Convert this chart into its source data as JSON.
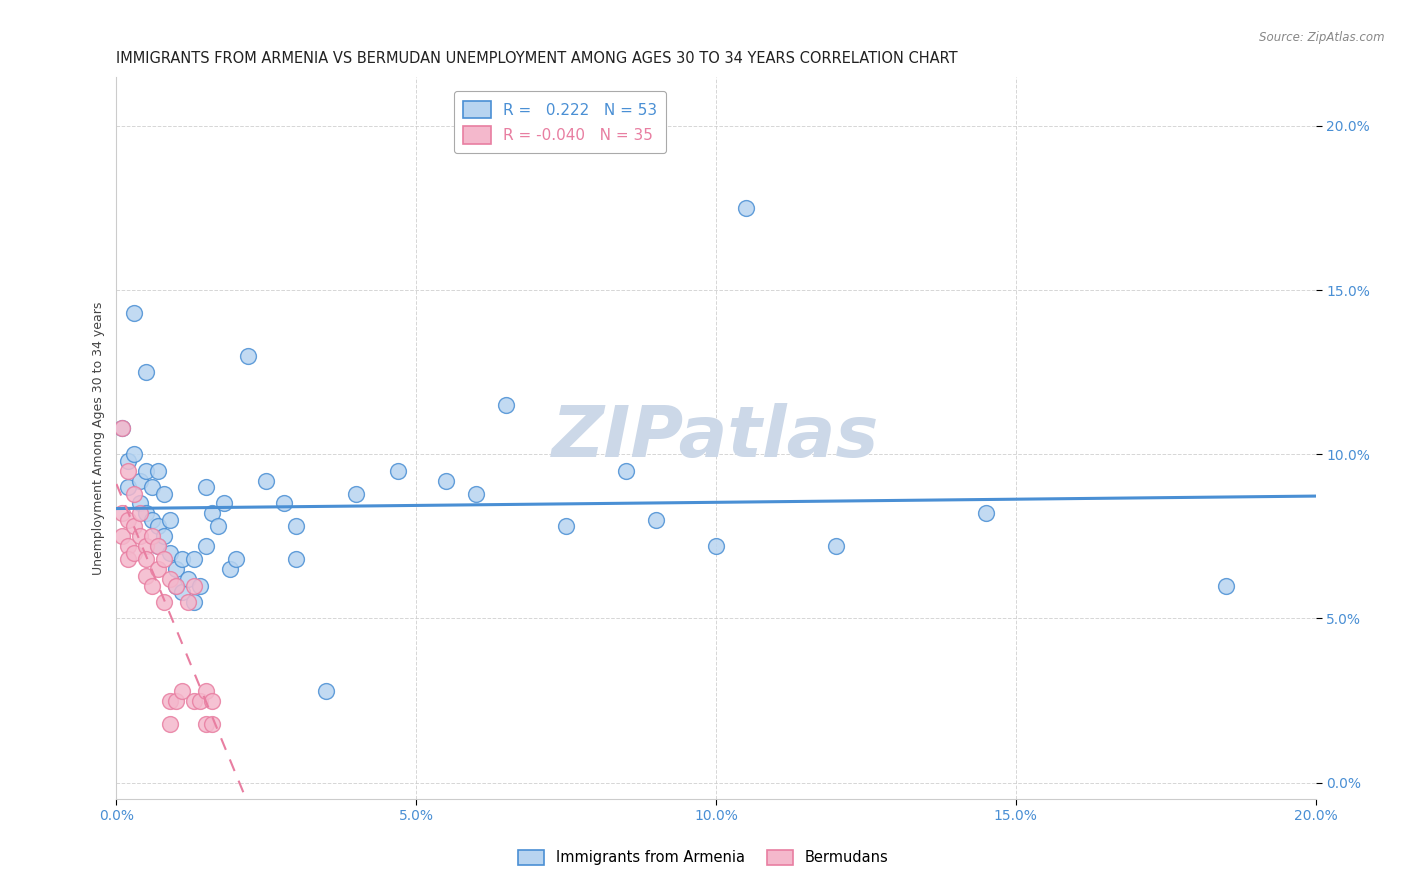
{
  "title": "IMMIGRANTS FROM ARMENIA VS BERMUDAN UNEMPLOYMENT AMONG AGES 30 TO 34 YEARS CORRELATION CHART",
  "source": "Source: ZipAtlas.com",
  "xlabel_ticks": [
    "0.0%",
    "5.0%",
    "10.0%",
    "15.0%",
    "20.0%"
  ],
  "xlabel_tick_vals": [
    0.0,
    0.05,
    0.1,
    0.15,
    0.2
  ],
  "ylabel": "Unemployment Among Ages 30 to 34 years",
  "ytick_labels": [
    "0.0%",
    "5.0%",
    "10.0%",
    "15.0%",
    "20.0%"
  ],
  "ytick_vals": [
    0.0,
    0.05,
    0.1,
    0.15,
    0.2
  ],
  "xmin": 0.0,
  "xmax": 0.2,
  "ymin": -0.005,
  "ymax": 0.215,
  "blue_R": "0.222",
  "blue_N": "53",
  "pink_R": "-0.040",
  "pink_N": "35",
  "legend_label_blue": "Immigrants from Armenia",
  "legend_label_pink": "Bermudans",
  "watermark": "ZIPatlas",
  "blue_scatter": [
    [
      0.001,
      0.108
    ],
    [
      0.002,
      0.098
    ],
    [
      0.002,
      0.09
    ],
    [
      0.003,
      0.143
    ],
    [
      0.003,
      0.1
    ],
    [
      0.004,
      0.092
    ],
    [
      0.004,
      0.085
    ],
    [
      0.005,
      0.125
    ],
    [
      0.005,
      0.095
    ],
    [
      0.005,
      0.082
    ],
    [
      0.006,
      0.09
    ],
    [
      0.006,
      0.08
    ],
    [
      0.007,
      0.095
    ],
    [
      0.007,
      0.078
    ],
    [
      0.007,
      0.072
    ],
    [
      0.008,
      0.088
    ],
    [
      0.008,
      0.075
    ],
    [
      0.009,
      0.08
    ],
    [
      0.009,
      0.07
    ],
    [
      0.01,
      0.065
    ],
    [
      0.01,
      0.06
    ],
    [
      0.011,
      0.068
    ],
    [
      0.011,
      0.058
    ],
    [
      0.012,
      0.062
    ],
    [
      0.013,
      0.068
    ],
    [
      0.013,
      0.055
    ],
    [
      0.014,
      0.06
    ],
    [
      0.015,
      0.09
    ],
    [
      0.015,
      0.072
    ],
    [
      0.016,
      0.082
    ],
    [
      0.017,
      0.078
    ],
    [
      0.018,
      0.085
    ],
    [
      0.019,
      0.065
    ],
    [
      0.02,
      0.068
    ],
    [
      0.022,
      0.13
    ],
    [
      0.025,
      0.092
    ],
    [
      0.028,
      0.085
    ],
    [
      0.03,
      0.078
    ],
    [
      0.03,
      0.068
    ],
    [
      0.035,
      0.028
    ],
    [
      0.04,
      0.088
    ],
    [
      0.047,
      0.095
    ],
    [
      0.055,
      0.092
    ],
    [
      0.06,
      0.088
    ],
    [
      0.065,
      0.115
    ],
    [
      0.075,
      0.078
    ],
    [
      0.085,
      0.095
    ],
    [
      0.09,
      0.08
    ],
    [
      0.1,
      0.072
    ],
    [
      0.105,
      0.175
    ],
    [
      0.12,
      0.072
    ],
    [
      0.145,
      0.082
    ],
    [
      0.185,
      0.06
    ]
  ],
  "pink_scatter": [
    [
      0.001,
      0.108
    ],
    [
      0.001,
      0.082
    ],
    [
      0.001,
      0.075
    ],
    [
      0.002,
      0.095
    ],
    [
      0.002,
      0.08
    ],
    [
      0.002,
      0.072
    ],
    [
      0.002,
      0.068
    ],
    [
      0.003,
      0.088
    ],
    [
      0.003,
      0.078
    ],
    [
      0.003,
      0.07
    ],
    [
      0.004,
      0.082
    ],
    [
      0.004,
      0.075
    ],
    [
      0.005,
      0.072
    ],
    [
      0.005,
      0.068
    ],
    [
      0.005,
      0.063
    ],
    [
      0.006,
      0.075
    ],
    [
      0.006,
      0.06
    ],
    [
      0.007,
      0.072
    ],
    [
      0.007,
      0.065
    ],
    [
      0.008,
      0.068
    ],
    [
      0.008,
      0.055
    ],
    [
      0.009,
      0.062
    ],
    [
      0.009,
      0.025
    ],
    [
      0.009,
      0.018
    ],
    [
      0.01,
      0.06
    ],
    [
      0.01,
      0.025
    ],
    [
      0.011,
      0.028
    ],
    [
      0.012,
      0.055
    ],
    [
      0.013,
      0.06
    ],
    [
      0.013,
      0.025
    ],
    [
      0.014,
      0.025
    ],
    [
      0.015,
      0.028
    ],
    [
      0.015,
      0.018
    ],
    [
      0.016,
      0.025
    ],
    [
      0.016,
      0.018
    ]
  ],
  "blue_line_color": "#4a8fd4",
  "pink_line_color": "#e87ea1",
  "blue_scatter_facecolor": "#b8d4f0",
  "pink_scatter_facecolor": "#f4b8cc",
  "grid_color": "#cccccc",
  "background_color": "#ffffff",
  "title_fontsize": 10.5,
  "tick_fontsize": 10,
  "ylabel_fontsize": 9,
  "watermark_color": "#ccd8e8",
  "watermark_fontsize": 52,
  "scatter_size": 130,
  "scatter_alpha": 0.85,
  "scatter_lw": 1.0
}
